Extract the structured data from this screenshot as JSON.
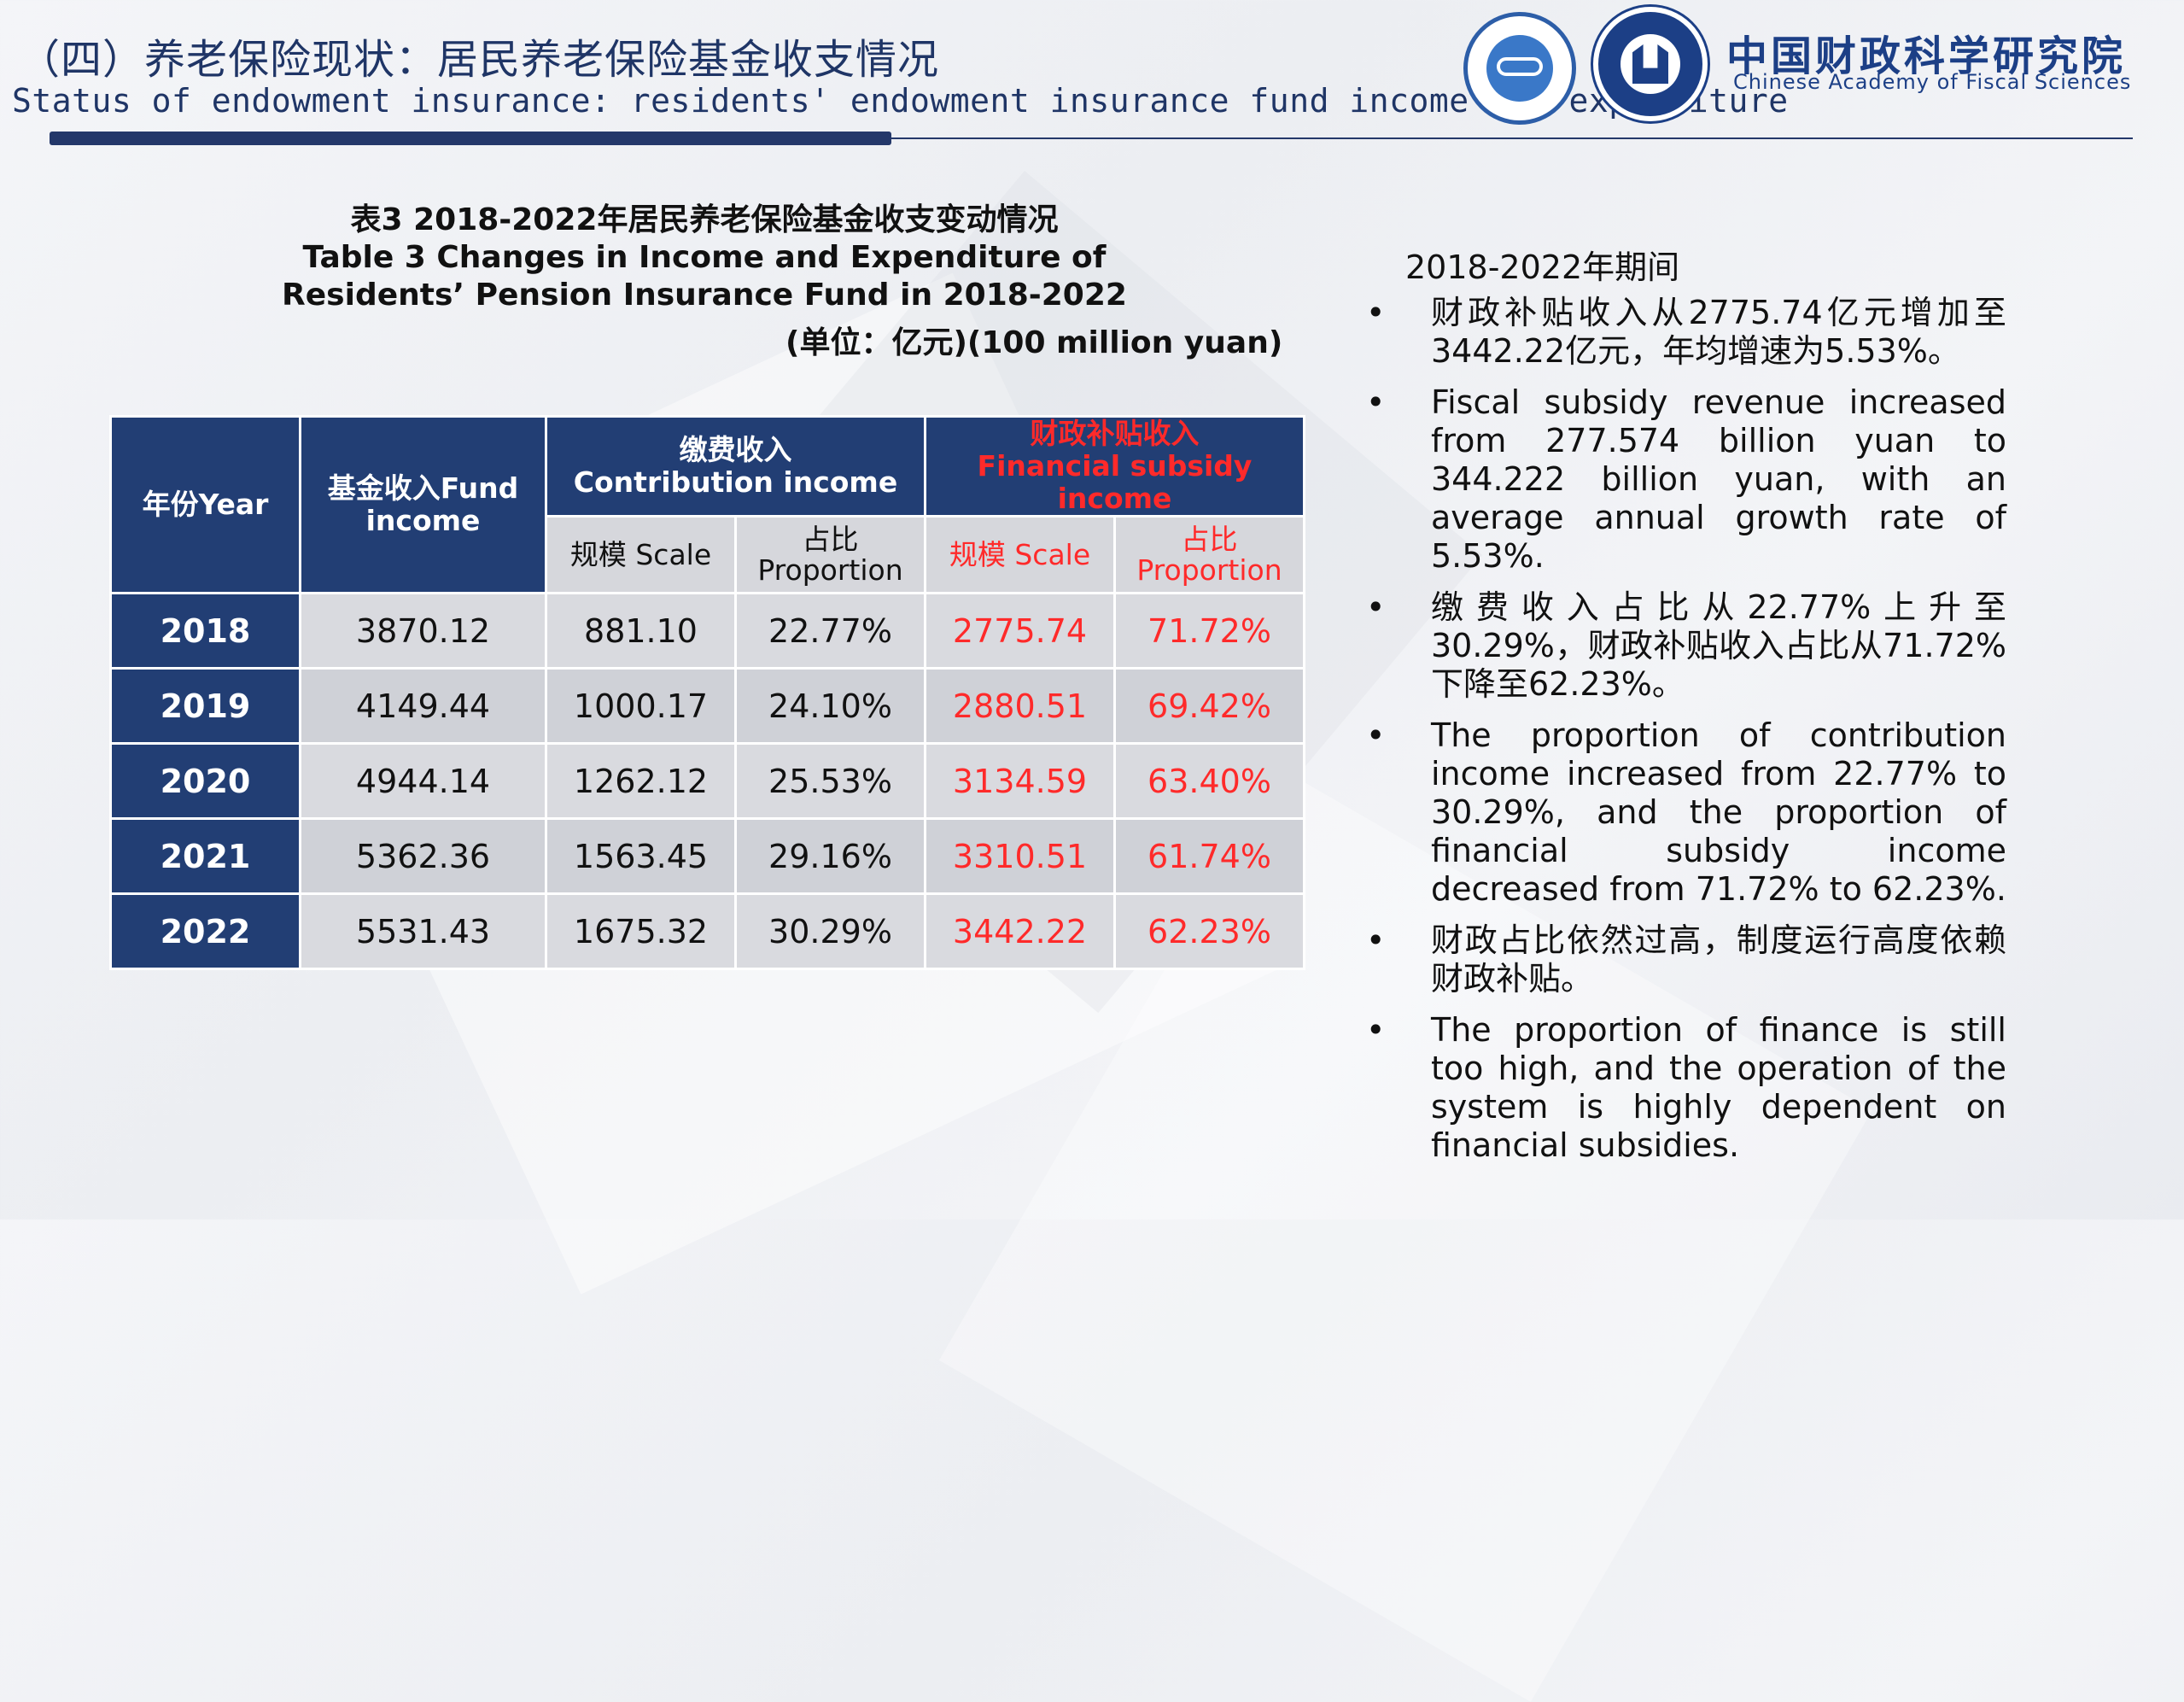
{
  "header": {
    "title_cn": "（四）养老保险现状：居民养老保险基金收支情况",
    "title_en": "Status of endowment insurance: residents' endowment insurance fund income and expenditure"
  },
  "org": {
    "name_cn": "中国财政科学研究院",
    "name_en": "Chinese Academy of Fiscal Sciences"
  },
  "caption": {
    "line1": "表3 2018-2022年居民养老保险基金收支变动情况",
    "line2": "Table 3 Changes in Income and Expenditure of Residents’ Pension Insurance Fund in 2018-2022",
    "unit": "(单位：亿元)(100 million yuan)"
  },
  "table": {
    "headers": {
      "year": "年份Year",
      "fund_income": "基金收入Fund income",
      "contribution": "缴费收入\nContribution income",
      "subsidy": "财政补贴收入\nFinancial subsidy income",
      "scale": "规模 Scale",
      "proportion": "占比\nProportion"
    },
    "rows": [
      {
        "year": "2018",
        "fund_income": "3870.12",
        "contrib_scale": "881.10",
        "contrib_prop": "22.77%",
        "subsidy_scale": "2775.74",
        "subsidy_prop": "71.72%"
      },
      {
        "year": "2019",
        "fund_income": "4149.44",
        "contrib_scale": "1000.17",
        "contrib_prop": "24.10%",
        "subsidy_scale": "2880.51",
        "subsidy_prop": "69.42%"
      },
      {
        "year": "2020",
        "fund_income": "4944.14",
        "contrib_scale": "1262.12",
        "contrib_prop": "25.53%",
        "subsidy_scale": "3134.59",
        "subsidy_prop": "63.40%"
      },
      {
        "year": "2021",
        "fund_income": "5362.36",
        "contrib_scale": "1563.45",
        "contrib_prop": "29.16%",
        "subsidy_scale": "3310.51",
        "subsidy_prop": "61.74%"
      },
      {
        "year": "2022",
        "fund_income": "5531.43",
        "contrib_scale": "1675.32",
        "contrib_prop": "30.29%",
        "subsidy_scale": "3442.22",
        "subsidy_prop": "62.23%"
      }
    ]
  },
  "side": {
    "period": "2018-2022年期间",
    "bullet_symbol": "•",
    "bullets": [
      "财政补贴收入从2775.74亿元增加至3442.22亿元，年均增速为5.53%。",
      "Fiscal subsidy revenue increased from 277.574 billion yuan to 344.222 billion yuan, with an average annual growth rate of 5.53%.",
      "缴费收入占比从22.77%上升至30.29%，财政补贴收入占比从71.72%下降至62.23%。",
      "The proportion of contribution income increased from 22.77% to 30.29%, and the proportion of financial subsidy income decreased from 71.72% to 62.23%.",
      "财政占比依然过高，制度运行高度依赖财政补贴。",
      "The proportion of finance is still too high, and the operation of the system is highly dependent on financial subsidies."
    ]
  },
  "colors": {
    "navy": "#223e74",
    "red": "#ff2a2a",
    "cell_gray": "#d9dadf",
    "brand_blue": "#1c3f86"
  }
}
